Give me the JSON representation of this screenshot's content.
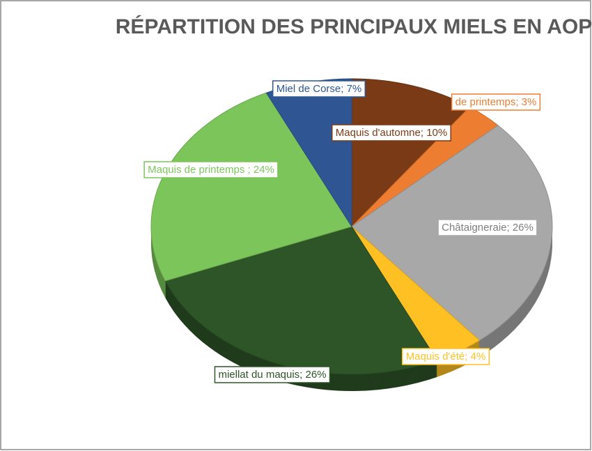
{
  "chart_data": {
    "type": "pie",
    "title": "RÉPARTITION DES PRINCIPAUX MIELS EN AOP",
    "values": [
      10,
      3,
      26,
      4,
      26,
      24,
      7
    ],
    "value_labels": [
      "Maquis d'automne; 10%",
      "de printemps; 3%",
      "Châtaigneraie; 26%",
      "Maquis d'été; 4%",
      "miellat du maquis; 26%",
      "Maquis de printemps ; 24%",
      "Miel de Corse; 7%"
    ],
    "colors": [
      "#7a3a16",
      "#ed7d31",
      "#a8a8a8",
      "#ffc024",
      "#2d5527",
      "#7cc55a",
      "#2f5693"
    ]
  }
}
